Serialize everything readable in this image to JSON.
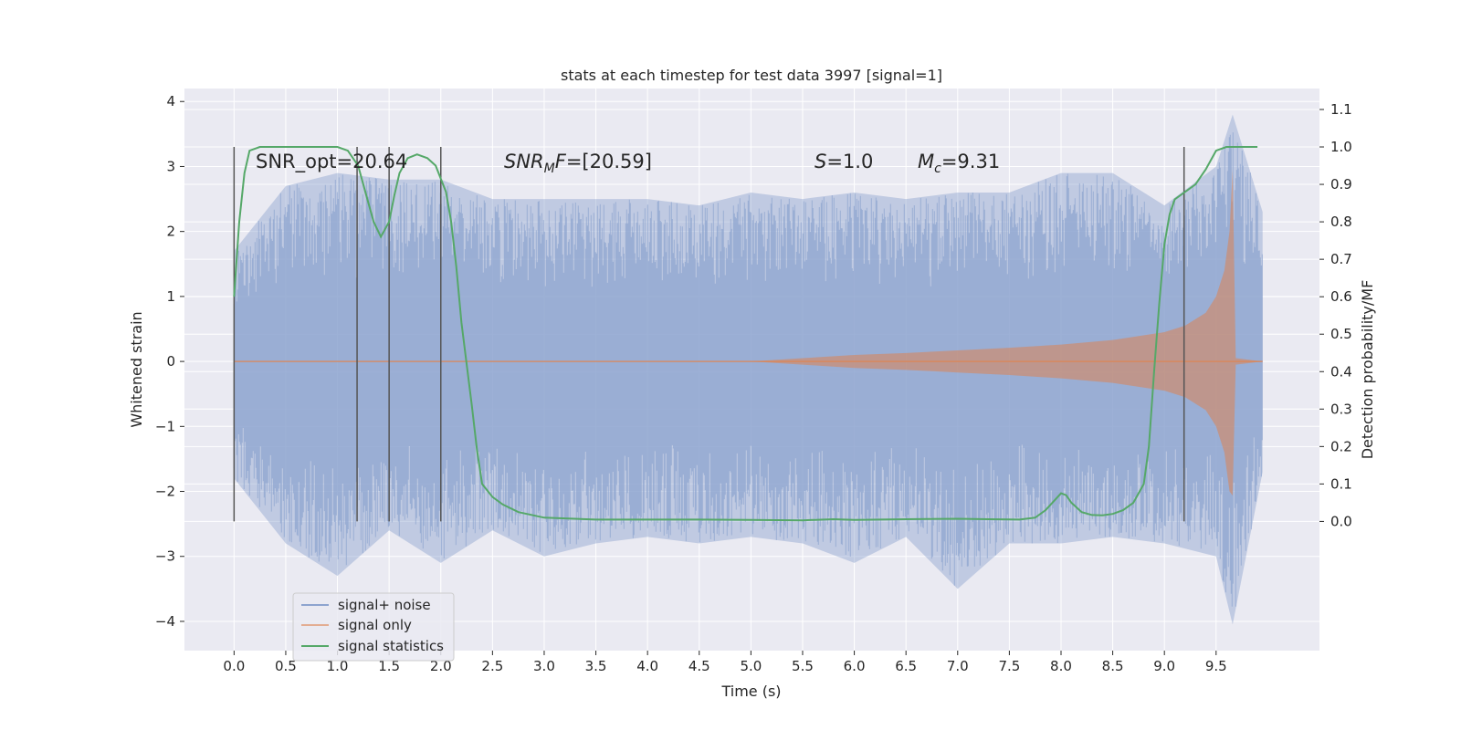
{
  "chart_data": {
    "type": "line",
    "title": "stats at each timestep for test data 3997 [signal=1]",
    "xlabel": "Time (s)",
    "ylabel": "Whitened strain",
    "y2label": "Detection probability/MF",
    "xlim": [
      -0.48,
      10.5
    ],
    "ylim": [
      -4.45,
      4.2
    ],
    "y2lim": [
      -0.345,
      1.156
    ],
    "x_ticks": [
      0.0,
      0.5,
      1.0,
      1.5,
      2.0,
      2.5,
      3.0,
      3.5,
      4.0,
      4.5,
      5.0,
      5.5,
      6.0,
      6.5,
      7.0,
      7.5,
      8.0,
      8.5,
      9.0,
      9.5
    ],
    "y_ticks": [
      -4,
      -3,
      -2,
      -1,
      0,
      1,
      2,
      3,
      4
    ],
    "y2_ticks": [
      0.0,
      0.1,
      0.2,
      0.3,
      0.4,
      0.5,
      0.6,
      0.7,
      0.8,
      0.9,
      1.0,
      1.1
    ],
    "grid": true,
    "legend_position": "lower-left",
    "colors": {
      "background": "#eaeaf2",
      "grid": "#ffffff",
      "noise": "#8da4cf",
      "signal": "#dd8452",
      "stat": "#55a868",
      "vline": "#555555"
    },
    "annotations": [
      {
        "text": "SNR_opt=20.64"
      },
      {
        "text": "SNR_MF=[20.59]"
      },
      {
        "text": "S=1.0"
      },
      {
        "text": "M_c=9.31"
      }
    ],
    "vertical_lines_x": [
      0.0,
      1.19,
      1.5,
      2.0,
      9.19
    ],
    "series": [
      {
        "name": "signal+ noise",
        "axis": "left",
        "envelope": {
          "x": [
            0.0,
            0.5,
            1.0,
            1.5,
            2.0,
            2.5,
            3.0,
            3.5,
            4.0,
            4.5,
            5.0,
            5.5,
            6.0,
            6.5,
            7.0,
            7.5,
            8.0,
            8.5,
            9.0,
            9.5,
            9.66,
            9.95
          ],
          "max": [
            1.7,
            2.7,
            2.9,
            2.8,
            2.8,
            2.5,
            2.5,
            2.5,
            2.5,
            2.4,
            2.6,
            2.5,
            2.6,
            2.5,
            2.6,
            2.6,
            2.9,
            2.9,
            2.4,
            3.0,
            3.8,
            2.3
          ],
          "min": [
            -1.8,
            -2.8,
            -3.3,
            -2.6,
            -3.1,
            -2.6,
            -3.0,
            -2.8,
            -2.7,
            -2.8,
            -2.7,
            -2.8,
            -3.1,
            -2.7,
            -3.5,
            -2.8,
            -2.8,
            -2.7,
            -2.8,
            -3.0,
            -4.05,
            -1.7
          ]
        }
      },
      {
        "name": "signal only",
        "axis": "left",
        "envelope": {
          "x": [
            0.0,
            5.0,
            5.5,
            6.0,
            6.5,
            7.0,
            7.5,
            8.0,
            8.5,
            9.0,
            9.2,
            9.4,
            9.5,
            9.58,
            9.63,
            9.66,
            9.69,
            9.95
          ],
          "amp": [
            0.0,
            0.0,
            0.05,
            0.1,
            0.13,
            0.17,
            0.21,
            0.26,
            0.33,
            0.45,
            0.55,
            0.75,
            1.0,
            1.4,
            2.0,
            2.95,
            0.05,
            0.0
          ]
        }
      },
      {
        "name": "signal statistics",
        "axis": "right",
        "x": [
          0.0,
          0.05,
          0.1,
          0.15,
          0.25,
          0.4,
          0.6,
          0.8,
          1.0,
          1.1,
          1.2,
          1.27,
          1.35,
          1.42,
          1.5,
          1.55,
          1.6,
          1.68,
          1.77,
          1.87,
          1.95,
          2.05,
          2.1,
          2.15,
          2.2,
          2.3,
          2.35,
          2.4,
          2.5,
          2.6,
          2.75,
          3.0,
          3.5,
          4.0,
          4.5,
          5.0,
          5.5,
          5.8,
          6.0,
          6.5,
          7.0,
          7.3,
          7.6,
          7.75,
          7.85,
          7.95,
          8.0,
          8.05,
          8.1,
          8.2,
          8.3,
          8.4,
          8.5,
          8.6,
          8.7,
          8.8,
          8.85,
          8.9,
          8.95,
          9.0,
          9.05,
          9.1,
          9.2,
          9.3,
          9.4,
          9.5,
          9.6,
          9.7,
          9.9
        ],
        "values": [
          0.6,
          0.8,
          0.93,
          0.99,
          1.0,
          1.0,
          1.0,
          1.0,
          1.0,
          0.99,
          0.95,
          0.88,
          0.8,
          0.76,
          0.8,
          0.87,
          0.93,
          0.97,
          0.98,
          0.97,
          0.95,
          0.88,
          0.8,
          0.68,
          0.53,
          0.31,
          0.19,
          0.1,
          0.065,
          0.045,
          0.025,
          0.01,
          0.005,
          0.005,
          0.005,
          0.004,
          0.003,
          0.006,
          0.004,
          0.006,
          0.007,
          0.006,
          0.005,
          0.01,
          0.03,
          0.06,
          0.075,
          0.07,
          0.05,
          0.025,
          0.017,
          0.016,
          0.02,
          0.03,
          0.05,
          0.1,
          0.2,
          0.4,
          0.58,
          0.74,
          0.82,
          0.86,
          0.88,
          0.9,
          0.94,
          0.99,
          1.0,
          1.0,
          1.0
        ]
      }
    ]
  }
}
